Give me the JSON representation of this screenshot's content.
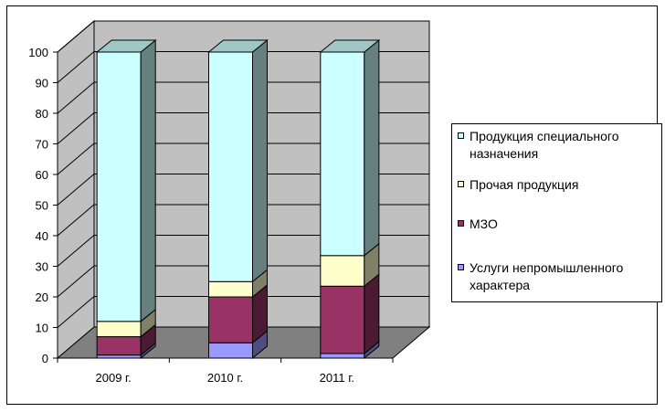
{
  "chart_data": {
    "type": "bar",
    "stacked": true,
    "three_d": true,
    "title": "",
    "xlabel": "",
    "ylabel": "",
    "ylim": [
      0,
      100
    ],
    "yticks": [
      0,
      10,
      20,
      30,
      40,
      50,
      60,
      70,
      80,
      90,
      100
    ],
    "grid": true,
    "legend_position": "right",
    "categories": [
      "2009 г.",
      "2010 г.",
      "2011 г."
    ],
    "series": [
      {
        "name": "Услуги непромышленного характера",
        "values": [
          1,
          5,
          1.5
        ],
        "color": "#9999ff"
      },
      {
        "name": "МЗО",
        "values": [
          6,
          15,
          22
        ],
        "color": "#993366"
      },
      {
        "name": "Прочая продукция",
        "values": [
          5,
          5,
          10
        ],
        "color": "#ffffcc"
      },
      {
        "name": "Продукция специального назначения",
        "values": [
          88,
          75,
          66.5
        ],
        "color": "#ccffff"
      }
    ],
    "legend_order": [
      3,
      2,
      1,
      0
    ],
    "colors": {
      "wall": "#c0c0c0",
      "floor": "#808080",
      "grid": "#000000"
    }
  }
}
